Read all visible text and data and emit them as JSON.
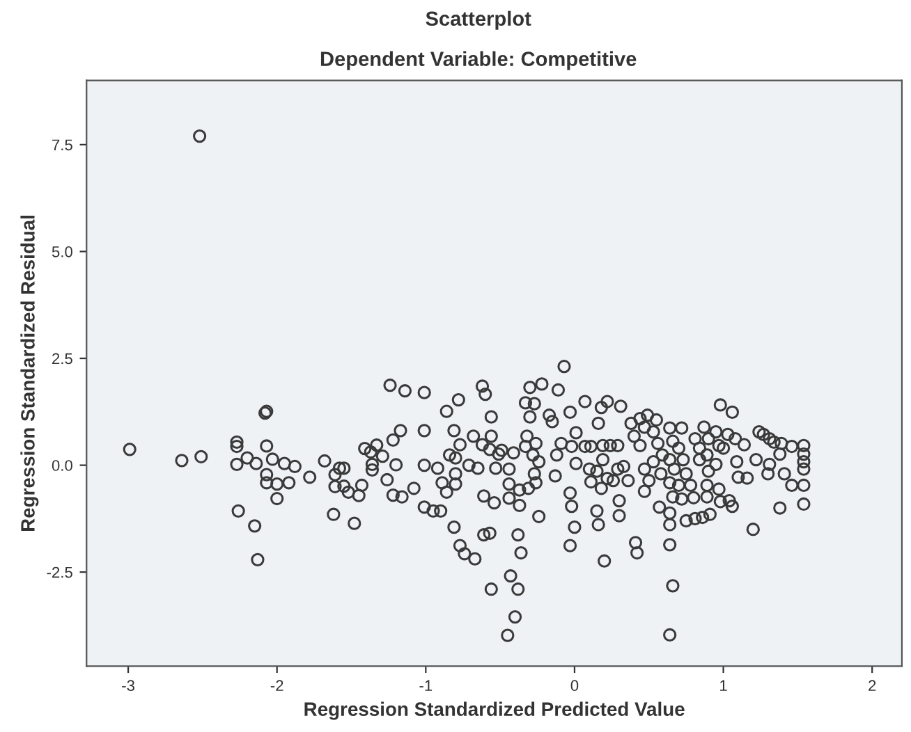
{
  "chart_data": {
    "type": "scatter",
    "title": "Scatterplot",
    "subtitle": "Dependent Variable: Competitive",
    "xlabel": "Regression Standardized Predicted Value",
    "ylabel": "Regression Standardized Residual",
    "xlim": [
      -3.28,
      2.2
    ],
    "ylim": [
      -4.7,
      9.0
    ],
    "xticks": [
      -3,
      -2,
      -1,
      0,
      1,
      2
    ],
    "yticks": [
      {
        "value": -2.5,
        "label": "-2.5"
      },
      {
        "value": 0,
        "label": "0.0"
      },
      {
        "value": 2.5,
        "label": "2.5"
      },
      {
        "value": 5,
        "label": "5.0"
      },
      {
        "value": 7.5,
        "label": "7.5"
      }
    ],
    "grid": false,
    "marker": "circle",
    "series": [
      {
        "color": "#3a3a3a",
        "x": [
          -2.52,
          -2.99,
          -2.64,
          -2.51,
          -2.27,
          -2.27,
          -2.27,
          -2.2,
          -2.14,
          -2.26,
          -2.15,
          -2.13,
          -2.08,
          -2.07,
          -2.07,
          -2.03,
          -2.07,
          -2.07,
          -2.0,
          -2.0,
          -1.95,
          -1.92,
          -1.88,
          -1.78,
          -1.68,
          -1.62,
          -1.61,
          -1.58,
          -1.55,
          -1.61,
          -1.55,
          -1.52,
          -1.48,
          -1.45,
          -1.43,
          -1.41,
          -1.37,
          -1.33,
          -1.36,
          -1.36,
          -1.29,
          -1.26,
          -1.22,
          -1.2,
          -1.17,
          -1.24,
          -1.14,
          -1.22,
          -1.16,
          -1.08,
          -1.01,
          -1.01,
          -1.01,
          -1.01,
          -0.78,
          -0.86,
          -0.81,
          -0.77,
          -0.68,
          -0.62,
          -0.6,
          -0.56,
          -0.56,
          -0.84,
          -0.8,
          -0.92,
          -0.8,
          -0.89,
          -0.8,
          -0.86,
          -0.71,
          -0.65,
          -0.62,
          -0.57,
          -0.51,
          -0.49,
          -0.41,
          -0.53,
          -0.44,
          -0.44,
          -0.37,
          -0.61,
          -0.54,
          -0.44,
          -0.37,
          -0.24,
          -0.95,
          -0.9,
          -0.81,
          -0.77,
          -0.74,
          -0.67,
          -0.61,
          -0.57,
          -0.38,
          -0.36,
          -0.43,
          -0.56,
          -0.38,
          -0.4,
          -0.45,
          -0.3,
          -0.22,
          -0.11,
          -0.07,
          -0.33,
          -0.27,
          -0.3,
          -0.17,
          -0.15,
          -0.32,
          -0.26,
          -0.33,
          -0.28,
          -0.24,
          -0.27,
          -0.26,
          -0.31,
          -0.12,
          -0.13,
          -0.09,
          -0.03,
          0.01,
          -0.02,
          0.07,
          0.01,
          0.11,
          -0.03,
          -0.02,
          0.0,
          -0.03,
          0.07,
          0.18,
          0.22,
          0.31,
          0.16,
          0.19,
          0.24,
          0.29,
          0.1,
          0.11,
          0.15,
          0.19,
          0.18,
          0.22,
          0.29,
          0.33,
          0.26,
          0.15,
          0.16,
          0.3,
          0.3,
          0.2,
          0.38,
          0.44,
          0.4,
          0.44,
          0.36,
          0.41,
          0.42,
          0.47,
          0.47,
          0.47,
          0.49,
          0.55,
          0.53,
          0.56,
          0.64,
          0.72,
          0.66,
          0.7,
          0.59,
          0.53,
          0.64,
          0.73,
          0.58,
          0.67,
          0.75,
          0.5,
          0.64,
          0.7,
          0.78,
          0.66,
          0.72,
          0.8,
          0.57,
          0.64,
          0.64,
          0.75,
          0.81,
          0.86,
          0.91,
          0.64,
          0.66,
          0.64,
          0.81,
          0.84,
          0.87,
          0.89,
          0.9,
          0.95,
          0.95,
          0.97,
          0.84,
          0.9,
          0.89,
          0.89,
          0.97,
          0.98,
          1.04,
          1.06,
          1.0,
          1.03,
          1.08,
          1.14,
          1.09,
          1.1,
          1.16,
          0.98,
          1.06,
          1.2,
          1.22,
          1.24,
          1.27,
          1.3,
          1.31,
          1.31,
          1.34,
          1.39,
          1.38,
          1.41,
          1.46,
          1.38,
          1.46,
          1.54,
          1.54,
          1.54,
          1.54,
          1.54,
          1.54
        ],
        "values": [
          7.7,
          0.37,
          0.11,
          0.2,
          0.54,
          0.44,
          0.02,
          0.17,
          0.04,
          -1.07,
          -1.42,
          -2.21,
          1.22,
          1.26,
          0.45,
          0.14,
          -0.22,
          -0.41,
          -0.44,
          -0.78,
          0.04,
          -0.41,
          -0.03,
          -0.28,
          0.1,
          -1.15,
          -0.22,
          -0.07,
          -0.07,
          -0.5,
          -0.49,
          -0.63,
          -1.36,
          -0.71,
          -0.47,
          0.39,
          0.31,
          0.47,
          0.02,
          -0.11,
          0.21,
          -0.34,
          0.59,
          0.01,
          0.81,
          1.87,
          1.74,
          -0.7,
          -0.74,
          -0.54,
          1.7,
          0.81,
          0.0,
          -0.98,
          1.53,
          1.26,
          0.81,
          0.48,
          0.68,
          1.85,
          1.66,
          1.13,
          0.68,
          0.24,
          0.17,
          -0.07,
          -0.2,
          -0.41,
          -0.44,
          -0.63,
          0.0,
          -0.07,
          0.48,
          0.37,
          0.26,
          0.35,
          0.29,
          -0.07,
          -0.09,
          -0.44,
          -0.58,
          -0.72,
          -0.88,
          -0.77,
          -0.94,
          -1.2,
          -1.07,
          -1.07,
          -1.45,
          -1.88,
          -2.07,
          -2.19,
          -1.63,
          -1.59,
          -1.63,
          -2.05,
          -2.59,
          -2.9,
          -2.9,
          -3.55,
          -3.98,
          1.82,
          1.9,
          1.76,
          2.31,
          1.46,
          1.44,
          1.13,
          1.17,
          1.02,
          0.68,
          0.51,
          0.44,
          0.24,
          0.08,
          -0.2,
          -0.41,
          -0.54,
          0.24,
          -0.25,
          0.51,
          1.24,
          0.76,
          0.44,
          0.44,
          0.04,
          0.44,
          -0.65,
          -0.96,
          -1.45,
          -1.88,
          1.49,
          1.35,
          1.49,
          1.38,
          0.98,
          0.46,
          0.46,
          0.46,
          -0.09,
          -0.39,
          -0.14,
          0.13,
          -0.54,
          -0.31,
          -0.09,
          -0.03,
          -0.36,
          -1.07,
          -1.39,
          -0.83,
          -1.18,
          -2.24,
          0.98,
          1.09,
          0.68,
          0.46,
          -0.36,
          -1.81,
          -2.05,
          0.89,
          -0.09,
          -0.61,
          1.17,
          1.06,
          0.78,
          0.51,
          0.87,
          0.87,
          0.56,
          0.4,
          0.24,
          0.08,
          0.13,
          0.13,
          -0.2,
          -0.09,
          -0.2,
          -0.36,
          -0.41,
          -0.47,
          -0.47,
          -0.74,
          -0.79,
          -0.76,
          -0.98,
          -1.12,
          -1.39,
          -1.3,
          -1.25,
          -1.22,
          -1.15,
          -1.86,
          -2.82,
          -3.97,
          0.62,
          0.4,
          0.89,
          0.24,
          0.62,
          0.78,
          0.02,
          0.46,
          0.13,
          -0.14,
          -0.47,
          -0.74,
          -0.56,
          -0.85,
          -0.83,
          -0.96,
          0.4,
          0.72,
          0.62,
          0.48,
          0.08,
          -0.28,
          -0.3,
          1.41,
          1.24,
          -1.5,
          0.13,
          0.78,
          0.72,
          -0.2,
          0.02,
          0.62,
          0.54,
          0.51,
          0.26,
          -0.2,
          -0.47,
          -1.0,
          0.44,
          0.46,
          0.26,
          0.08,
          -0.09,
          -0.47,
          -0.91
        ]
      }
    ]
  }
}
